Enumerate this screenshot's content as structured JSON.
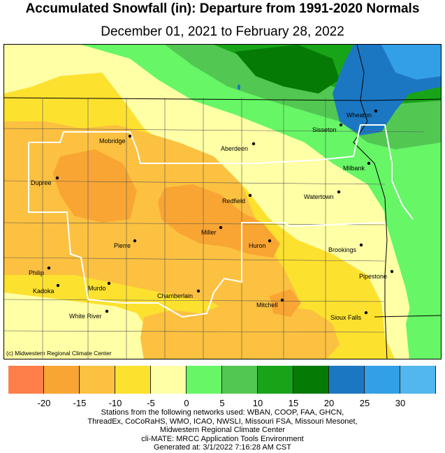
{
  "title": "Accumulated Snowfall (in): Departure from 1991-2020 Normals",
  "subtitle": "December 01, 2021 to February 28, 2022",
  "copyright": "(c) Midwestern Regional Climate Center",
  "cities": [
    {
      "name": "Sisseton"
    },
    {
      "name": "Wheaton"
    },
    {
      "name": "Mobridge"
    },
    {
      "name": "Aberdeen"
    },
    {
      "name": "Milbank"
    },
    {
      "name": "Dupree"
    },
    {
      "name": "Redfield"
    },
    {
      "name": "Watertown"
    },
    {
      "name": "Miller"
    },
    {
      "name": "Pierre"
    },
    {
      "name": "Huron"
    },
    {
      "name": "Brookings"
    },
    {
      "name": "Philip"
    },
    {
      "name": "Kadoka"
    },
    {
      "name": "Murdo"
    },
    {
      "name": "Pipestone"
    },
    {
      "name": "Chamberlain"
    },
    {
      "name": "Mitchell"
    },
    {
      "name": "White River"
    },
    {
      "name": "Sioux Falls"
    }
  ],
  "legend": {
    "colors": [
      "#ff7f4a",
      "#f9a533",
      "#fcc140",
      "#fde12f",
      "#ffffa6",
      "#66f666",
      "#52c852",
      "#18a418",
      "#057a05",
      "#1c77c2",
      "#329fe6",
      "#52b7ee"
    ],
    "tick_labels": [
      "-20",
      "-15",
      "-10",
      "-5",
      "0",
      "5",
      "10",
      "15",
      "20",
      "25",
      "30"
    ]
  },
  "footer": {
    "line1": "Stations from the following networks used: WBAN, COOP, FAA, GHCN,",
    "line2": "ThreadEx, CoCoRaHS, WMO, ICAO, NWSLI, Missouri FSA, Missouri Mesonet,",
    "line3": "Midwestern Regional Climate Center",
    "line4": "cli-MATE: MRCC Application Tools Environment",
    "line5": "Generated at: 3/1/2022 7:16:28 AM CST"
  }
}
